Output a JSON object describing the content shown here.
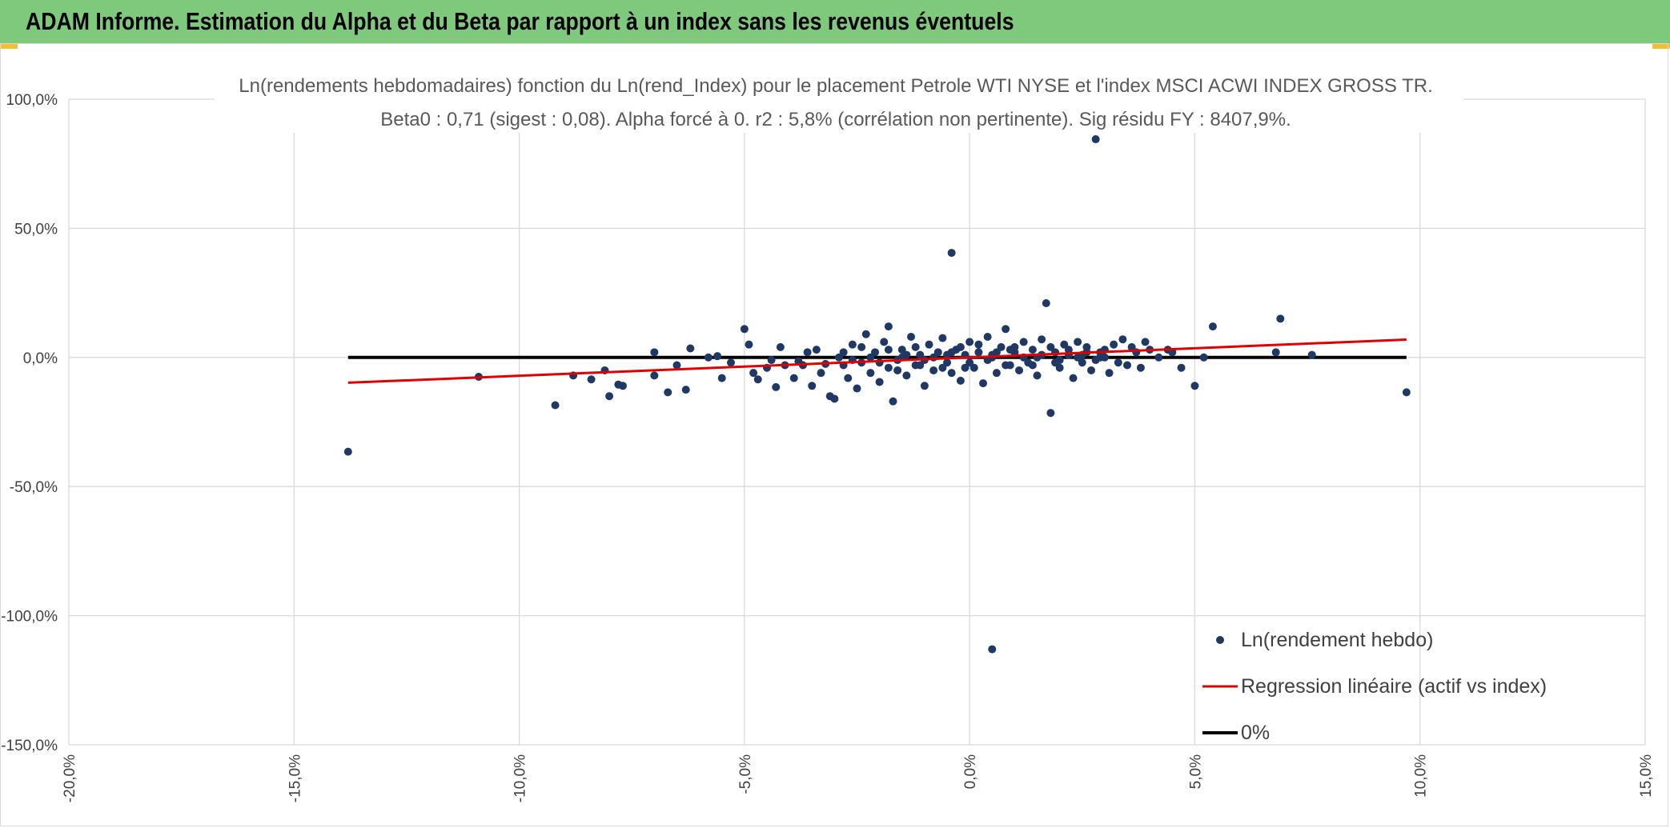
{
  "header": {
    "title": "ADAM Informe. Estimation du Alpha et du Beta par rapport à un index sans les revenus éventuels"
  },
  "colors": {
    "header_bg": "#7fc97c",
    "accent_corner": "#f2c12e",
    "points": "#1f3864",
    "regression": "#e00000",
    "zero_line": "#000000",
    "grid": "#d9d9d9"
  },
  "chart_data": {
    "type": "scatter",
    "title_line1": "Ln(rendements hebdomadaires) fonction du Ln(rend_Index) pour le placement Petrole WTI NYSE et l'index MSCI ACWI INDEX GROSS TR.",
    "title_line2": "Beta0 : 0,71 (sigest : 0,08). Alpha forcé à 0. r2 : 5,8% (corrélation non pertinente). Sig résidu FY : 8407,9%.",
    "xlim": [
      -0.2,
      0.15
    ],
    "ylim": [
      -1.5,
      1.0
    ],
    "x_ticks": [
      -0.2,
      -0.15,
      -0.1,
      -0.05,
      0.0,
      0.05,
      0.1,
      0.15
    ],
    "x_tick_labels": [
      "-20,0%",
      "-15,0%",
      "-10,0%",
      "-5,0%",
      "0,0%",
      "5,0%",
      "10,0%",
      "15,0%"
    ],
    "y_ticks": [
      1.0,
      0.5,
      0.0,
      -0.5,
      -1.0,
      -1.5
    ],
    "y_tick_labels": [
      "100,0%",
      "50,0%",
      "0,0%",
      "-50,0%",
      "-100,0%",
      "-150,0%"
    ],
    "grid": true,
    "legend_position": "bottom-right",
    "series": [
      {
        "name": "Ln(rendement hebdo)",
        "kind": "scatter",
        "color": "#1f3864",
        "points": [
          [
            -0.138,
            -0.365
          ],
          [
            -0.109,
            -0.075
          ],
          [
            -0.092,
            -0.185
          ],
          [
            -0.088,
            -0.07
          ],
          [
            -0.084,
            -0.085
          ],
          [
            -0.081,
            -0.05
          ],
          [
            -0.08,
            -0.15
          ],
          [
            -0.078,
            -0.105
          ],
          [
            -0.077,
            -0.11
          ],
          [
            -0.07,
            0.02
          ],
          [
            -0.07,
            -0.07
          ],
          [
            -0.067,
            -0.135
          ],
          [
            -0.065,
            -0.03
          ],
          [
            -0.063,
            -0.125
          ],
          [
            -0.062,
            0.035
          ],
          [
            -0.058,
            0.0
          ],
          [
            -0.056,
            0.005
          ],
          [
            -0.055,
            -0.08
          ],
          [
            -0.053,
            -0.02
          ],
          [
            -0.05,
            0.11
          ],
          [
            -0.049,
            0.05
          ],
          [
            -0.048,
            -0.06
          ],
          [
            -0.047,
            -0.085
          ],
          [
            -0.045,
            -0.04
          ],
          [
            -0.044,
            -0.01
          ],
          [
            -0.043,
            -0.115
          ],
          [
            -0.042,
            0.04
          ],
          [
            -0.041,
            -0.03
          ],
          [
            -0.039,
            -0.08
          ],
          [
            -0.038,
            -0.015
          ],
          [
            -0.037,
            -0.03
          ],
          [
            -0.036,
            0.02
          ],
          [
            -0.035,
            -0.11
          ],
          [
            -0.034,
            0.03
          ],
          [
            -0.033,
            -0.06
          ],
          [
            -0.032,
            -0.025
          ],
          [
            -0.031,
            -0.15
          ],
          [
            -0.03,
            -0.16
          ],
          [
            -0.029,
            0.0
          ],
          [
            -0.028,
            -0.03
          ],
          [
            -0.027,
            -0.08
          ],
          [
            -0.026,
            0.05
          ],
          [
            -0.025,
            -0.12
          ],
          [
            -0.024,
            -0.02
          ],
          [
            -0.023,
            0.09
          ],
          [
            -0.022,
            -0.06
          ],
          [
            -0.021,
            0.02
          ],
          [
            -0.02,
            -0.095
          ],
          [
            -0.019,
            0.06
          ],
          [
            -0.018,
            -0.04
          ],
          [
            -0.018,
            0.12
          ],
          [
            -0.017,
            -0.17
          ],
          [
            -0.016,
            -0.01
          ],
          [
            -0.015,
            0.03
          ],
          [
            -0.014,
            -0.07
          ],
          [
            -0.013,
            0.08
          ],
          [
            -0.012,
            -0.03
          ],
          [
            -0.011,
            0.01
          ],
          [
            -0.01,
            -0.11
          ],
          [
            -0.009,
            0.05
          ],
          [
            -0.008,
            -0.05
          ],
          [
            -0.007,
            0.02
          ],
          [
            -0.006,
            0.075
          ],
          [
            -0.005,
            -0.02
          ],
          [
            -0.004,
            0.405
          ],
          [
            -0.004,
            -0.06
          ],
          [
            -0.003,
            0.03
          ],
          [
            -0.002,
            -0.09
          ],
          [
            -0.001,
            0.01
          ],
          [
            0.0,
            0.06
          ],
          [
            0.001,
            -0.04
          ],
          [
            0.002,
            0.02
          ],
          [
            0.003,
            -0.1
          ],
          [
            0.004,
            0.08
          ],
          [
            0.005,
            -1.13
          ],
          [
            0.005,
            0.0
          ],
          [
            0.006,
            -0.06
          ],
          [
            0.007,
            0.04
          ],
          [
            0.008,
            0.11
          ],
          [
            0.009,
            -0.03
          ],
          [
            0.01,
            0.02
          ],
          [
            0.011,
            -0.05
          ],
          [
            0.012,
            0.06
          ],
          [
            0.013,
            -0.02
          ],
          [
            0.014,
            0.03
          ],
          [
            0.015,
            -0.07
          ],
          [
            0.016,
            0.07
          ],
          [
            0.017,
            0.21
          ],
          [
            0.018,
            -0.215
          ],
          [
            0.019,
            0.02
          ],
          [
            0.02,
            -0.04
          ],
          [
            0.021,
            0.05
          ],
          [
            0.022,
            0.01
          ],
          [
            0.023,
            -0.08
          ],
          [
            0.024,
            0.06
          ],
          [
            0.025,
            -0.02
          ],
          [
            0.026,
            0.04
          ],
          [
            0.027,
            -0.05
          ],
          [
            0.028,
            0.845
          ],
          [
            0.029,
            0.0
          ],
          [
            0.03,
            0.03
          ],
          [
            0.031,
            -0.06
          ],
          [
            0.032,
            0.05
          ],
          [
            0.033,
            -0.02
          ],
          [
            0.034,
            0.07
          ],
          [
            0.035,
            -0.03
          ],
          [
            0.036,
            0.04
          ],
          [
            0.037,
            0.02
          ],
          [
            0.038,
            -0.04
          ],
          [
            0.039,
            0.06
          ],
          [
            0.04,
            0.03
          ],
          [
            0.042,
            0.0
          ],
          [
            0.044,
            0.03
          ],
          [
            0.045,
            0.02
          ],
          [
            0.047,
            -0.04
          ],
          [
            0.05,
            -0.11
          ],
          [
            0.052,
            0.0
          ],
          [
            0.054,
            0.12
          ],
          [
            0.068,
            0.02
          ],
          [
            0.069,
            0.15
          ],
          [
            0.076,
            0.01
          ],
          [
            0.097,
            -0.135
          ],
          [
            -0.028,
            0.02
          ],
          [
            -0.026,
            -0.01
          ],
          [
            -0.024,
            0.04
          ],
          [
            -0.022,
            0.0
          ],
          [
            -0.02,
            -0.02
          ],
          [
            -0.018,
            0.03
          ],
          [
            -0.016,
            -0.05
          ],
          [
            -0.014,
            0.01
          ],
          [
            -0.012,
            0.04
          ],
          [
            -0.01,
            -0.01
          ],
          [
            -0.008,
            0.0
          ],
          [
            -0.006,
            -0.04
          ],
          [
            -0.004,
            0.02
          ],
          [
            -0.002,
            0.04
          ],
          [
            0.0,
            -0.02
          ],
          [
            0.002,
            0.05
          ],
          [
            0.004,
            -0.01
          ],
          [
            0.006,
            0.02
          ],
          [
            0.008,
            -0.03
          ],
          [
            0.01,
            0.04
          ],
          [
            0.012,
            0.0
          ],
          [
            0.014,
            -0.03
          ],
          [
            0.016,
            0.01
          ],
          [
            0.018,
            0.04
          ],
          [
            0.02,
            -0.01
          ],
          [
            0.022,
            0.03
          ],
          [
            0.024,
            0.0
          ],
          [
            0.026,
            0.02
          ],
          [
            0.028,
            -0.01
          ],
          [
            0.03,
            0.0
          ],
          [
            -0.015,
            0.0
          ],
          [
            -0.005,
            0.01
          ],
          [
            0.005,
            0.01
          ],
          [
            0.015,
            0.0
          ],
          [
            0.025,
            0.01
          ],
          [
            -0.011,
            -0.03
          ],
          [
            -0.001,
            -0.04
          ],
          [
            0.009,
            0.03
          ],
          [
            0.019,
            -0.02
          ],
          [
            0.029,
            0.02
          ]
        ]
      },
      {
        "name": "Regression linéaire (actif vs index)",
        "kind": "line",
        "color": "#e00000",
        "x": [
          -0.138,
          0.097
        ],
        "y": [
          -0.098,
          0.069
        ]
      },
      {
        "name": "0%",
        "kind": "line",
        "color": "#000000",
        "x": [
          -0.138,
          0.097
        ],
        "y": [
          0.0,
          0.0
        ]
      }
    ]
  }
}
